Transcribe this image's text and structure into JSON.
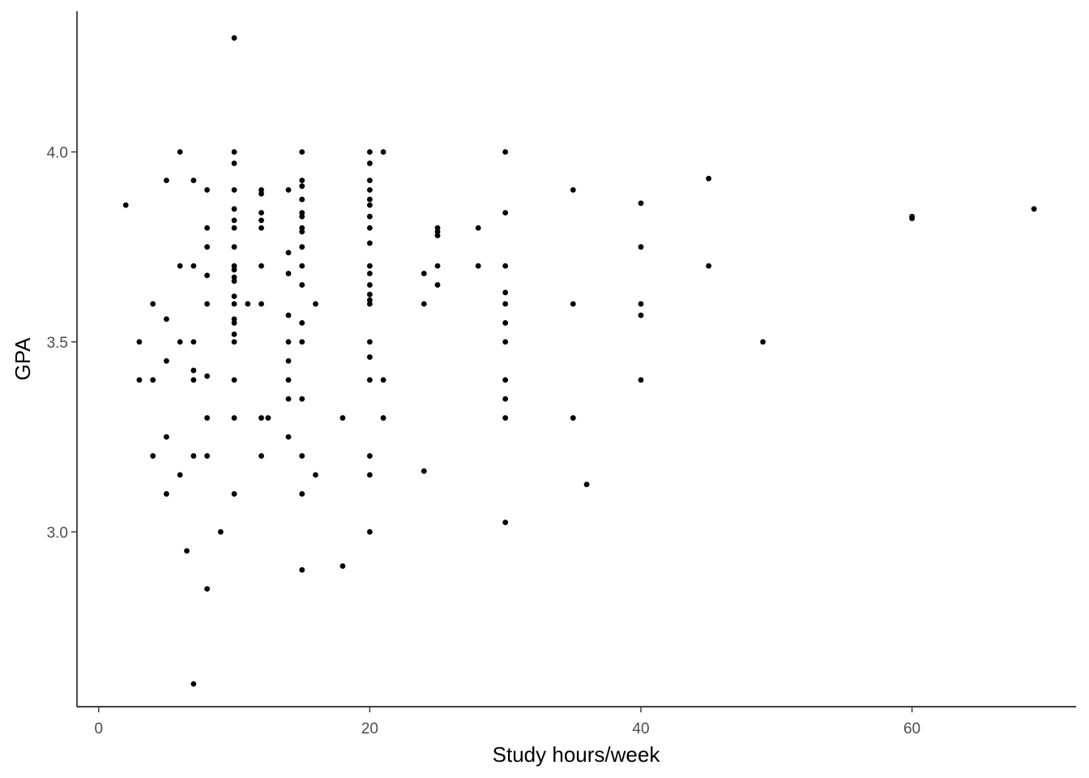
{
  "chart_data": {
    "type": "scatter",
    "title": "",
    "xlabel": "Study hours/week",
    "ylabel": "GPA",
    "xlim": [
      -1.6,
      72.1
    ],
    "ylim": [
      2.54,
      4.37
    ],
    "xticks": [
      0,
      20,
      40,
      60
    ],
    "yticks": [
      3.0,
      3.5,
      4.0
    ],
    "xtick_labels": [
      "0",
      "20",
      "40",
      "60"
    ],
    "ytick_labels": [
      "3.0",
      "3.5",
      "4.0"
    ],
    "grid": false,
    "legend": "none",
    "point_color": "#000000",
    "points": [
      [
        2,
        3.86
      ],
      [
        3,
        3.5
      ],
      [
        3,
        3.4
      ],
      [
        4,
        3.6
      ],
      [
        4,
        3.4
      ],
      [
        4,
        3.2
      ],
      [
        5,
        3.925
      ],
      [
        5,
        3.56
      ],
      [
        5,
        3.45
      ],
      [
        5,
        3.25
      ],
      [
        5,
        3.1
      ],
      [
        6,
        4.0
      ],
      [
        6,
        3.7
      ],
      [
        6,
        3.5
      ],
      [
        6,
        3.15
      ],
      [
        6.5,
        2.95
      ],
      [
        7,
        3.925
      ],
      [
        7,
        3.7
      ],
      [
        7,
        3.5
      ],
      [
        7,
        3.425
      ],
      [
        7,
        3.4
      ],
      [
        7,
        3.2
      ],
      [
        7,
        2.6
      ],
      [
        8,
        3.9
      ],
      [
        8,
        3.8
      ],
      [
        8,
        3.75
      ],
      [
        8,
        3.675
      ],
      [
        8,
        3.6
      ],
      [
        8,
        3.41
      ],
      [
        8,
        3.3
      ],
      [
        8,
        3.2
      ],
      [
        8,
        2.85
      ],
      [
        9,
        3.0
      ],
      [
        10,
        4.3
      ],
      [
        10,
        4.0
      ],
      [
        10,
        3.97
      ],
      [
        10,
        3.9
      ],
      [
        10,
        3.85
      ],
      [
        10,
        3.82
      ],
      [
        10,
        3.8
      ],
      [
        10,
        3.75
      ],
      [
        10,
        3.7
      ],
      [
        10,
        3.69
      ],
      [
        10,
        3.67
      ],
      [
        10,
        3.66
      ],
      [
        10,
        3.62
      ],
      [
        10,
        3.6
      ],
      [
        10,
        3.56
      ],
      [
        10,
        3.55
      ],
      [
        10,
        3.52
      ],
      [
        10,
        3.5
      ],
      [
        10,
        3.4
      ],
      [
        10,
        3.3
      ],
      [
        10,
        3.1
      ],
      [
        11,
        3.6
      ],
      [
        12,
        3.9
      ],
      [
        12,
        3.89
      ],
      [
        12,
        3.84
      ],
      [
        12,
        3.82
      ],
      [
        12,
        3.8
      ],
      [
        12,
        3.7
      ],
      [
        12,
        3.6
      ],
      [
        12,
        3.3
      ],
      [
        12,
        3.2
      ],
      [
        12.5,
        3.3
      ],
      [
        14,
        3.9
      ],
      [
        14,
        3.735
      ],
      [
        14,
        3.68
      ],
      [
        14,
        3.57
      ],
      [
        14,
        3.5
      ],
      [
        14,
        3.45
      ],
      [
        14,
        3.4
      ],
      [
        14,
        3.35
      ],
      [
        14,
        3.25
      ],
      [
        15,
        4.0
      ],
      [
        15,
        3.925
      ],
      [
        15,
        3.91
      ],
      [
        15,
        3.875
      ],
      [
        15,
        3.84
      ],
      [
        15,
        3.83
      ],
      [
        15,
        3.8
      ],
      [
        15,
        3.79
      ],
      [
        15,
        3.75
      ],
      [
        15,
        3.7
      ],
      [
        15,
        3.65
      ],
      [
        15,
        3.55
      ],
      [
        15,
        3.5
      ],
      [
        15,
        3.35
      ],
      [
        15,
        3.2
      ],
      [
        15,
        3.1
      ],
      [
        15,
        2.9
      ],
      [
        16,
        3.6
      ],
      [
        16,
        3.15
      ],
      [
        18,
        3.3
      ],
      [
        18,
        2.91
      ],
      [
        20,
        4.0
      ],
      [
        20,
        3.97
      ],
      [
        20,
        3.925
      ],
      [
        20,
        3.9
      ],
      [
        20,
        3.875
      ],
      [
        20,
        3.86
      ],
      [
        20,
        3.83
      ],
      [
        20,
        3.8
      ],
      [
        20,
        3.76
      ],
      [
        20,
        3.7
      ],
      [
        20,
        3.68
      ],
      [
        20,
        3.65
      ],
      [
        20,
        3.625
      ],
      [
        20,
        3.61
      ],
      [
        20,
        3.6
      ],
      [
        20,
        3.5
      ],
      [
        20,
        3.46
      ],
      [
        20,
        3.4
      ],
      [
        20,
        3.2
      ],
      [
        20,
        3.15
      ],
      [
        20,
        3.0
      ],
      [
        21,
        4.0
      ],
      [
        21,
        3.4
      ],
      [
        21,
        3.3
      ],
      [
        24,
        3.68
      ],
      [
        24,
        3.6
      ],
      [
        24,
        3.16
      ],
      [
        25,
        3.8
      ],
      [
        25,
        3.79
      ],
      [
        25,
        3.78
      ],
      [
        25,
        3.7
      ],
      [
        25,
        3.65
      ],
      [
        28,
        3.8
      ],
      [
        28,
        3.7
      ],
      [
        30,
        4.0
      ],
      [
        30,
        3.84
      ],
      [
        30,
        3.7
      ],
      [
        30,
        3.63
      ],
      [
        30,
        3.6
      ],
      [
        30,
        3.55
      ],
      [
        30,
        3.5
      ],
      [
        30,
        3.4
      ],
      [
        30,
        3.35
      ],
      [
        30,
        3.3
      ],
      [
        30,
        3.025
      ],
      [
        35,
        3.9
      ],
      [
        35,
        3.6
      ],
      [
        35,
        3.3
      ],
      [
        36,
        3.125
      ],
      [
        40,
        3.865
      ],
      [
        40,
        3.75
      ],
      [
        40,
        3.6
      ],
      [
        40,
        3.57
      ],
      [
        40,
        3.4
      ],
      [
        45,
        3.93
      ],
      [
        45,
        3.7
      ],
      [
        49,
        3.5
      ],
      [
        60,
        3.83
      ],
      [
        60,
        3.825
      ],
      [
        69,
        3.85
      ]
    ]
  }
}
